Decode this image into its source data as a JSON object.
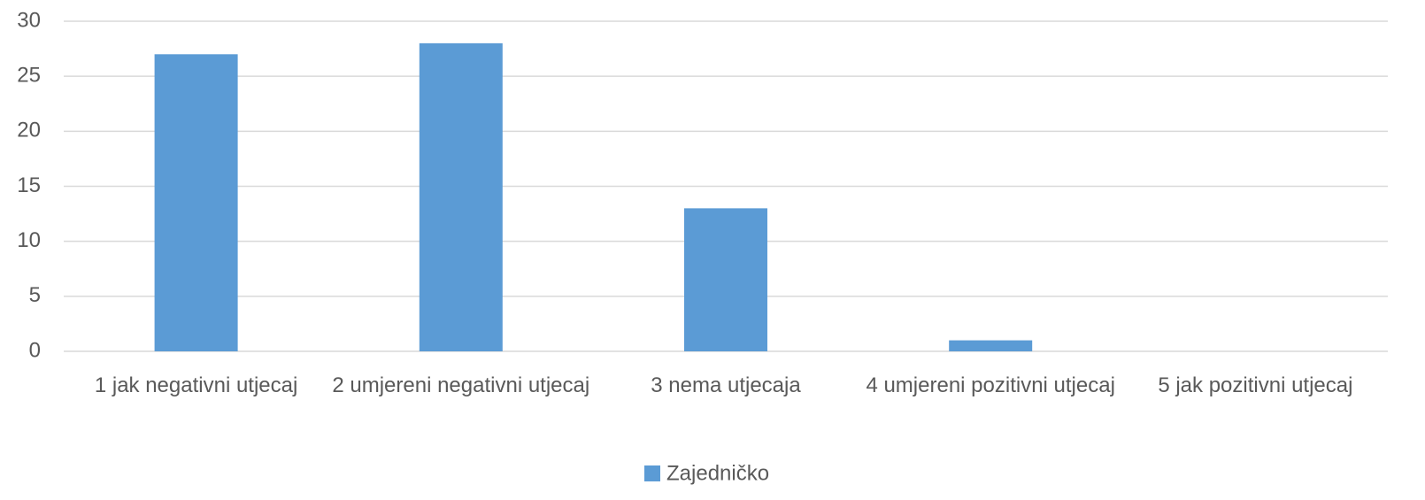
{
  "chart_data": {
    "type": "bar",
    "categories": [
      "1 jak negativni utjecaj",
      "2 umjereni negativni utjecaj",
      "3 nema utjecaja",
      "4 umjereni pozitivni utjecaj",
      "5 jak pozitivni utjecaj"
    ],
    "series": [
      {
        "name": "Zajedničko",
        "color": "#5b9bd5",
        "values": [
          27,
          28,
          13,
          1,
          0
        ]
      }
    ],
    "ylim": [
      0,
      30
    ],
    "yticks": [
      0,
      5,
      10,
      15,
      20,
      25,
      30
    ],
    "grid": true,
    "legend": "bottom"
  }
}
